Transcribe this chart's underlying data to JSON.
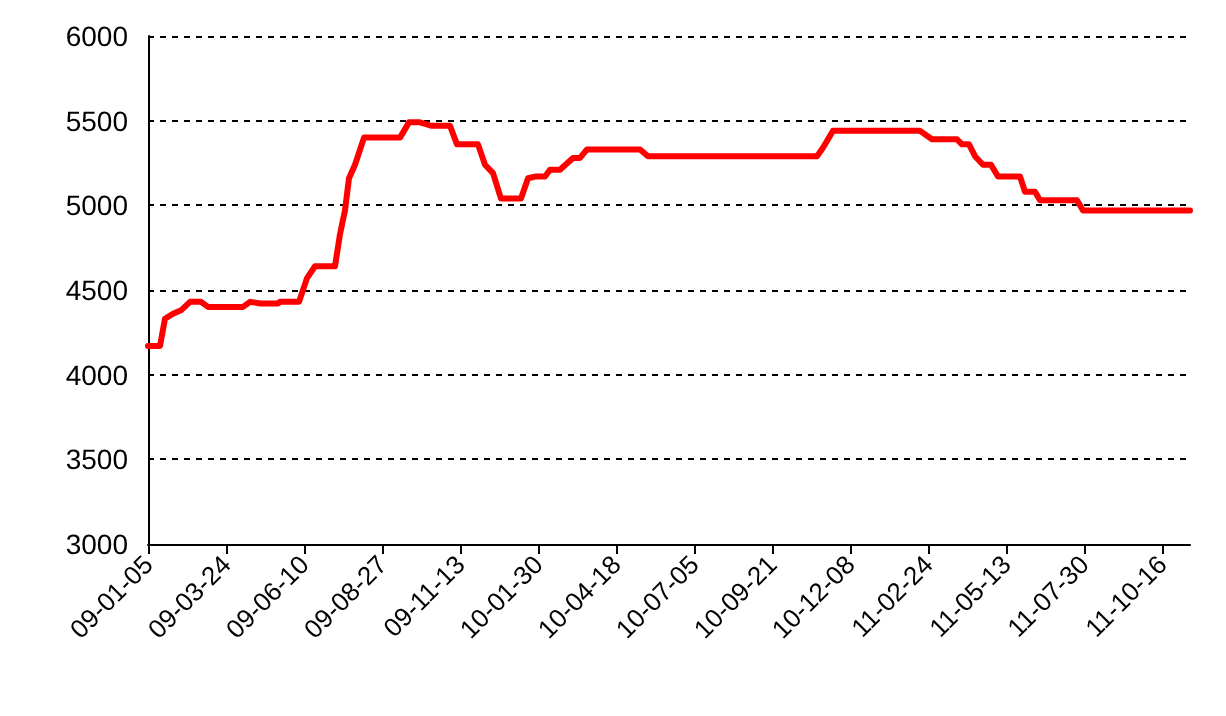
{
  "chart_data": {
    "type": "line",
    "x": [
      "2009-01-05",
      "2009-01-17",
      "2009-01-22",
      "2009-01-30",
      "2009-02-07",
      "2009-02-16",
      "2009-02-27",
      "2009-03-06",
      "2009-04-10",
      "2009-04-17",
      "2009-04-28",
      "2009-05-15",
      "2009-05-17",
      "2009-06-05",
      "2009-06-13",
      "2009-06-21",
      "2009-07-11",
      "2009-07-16",
      "2009-07-21",
      "2009-07-25",
      "2009-07-31",
      "2009-08-09",
      "2009-09-14",
      "2009-09-23",
      "2009-10-04",
      "2009-10-15",
      "2009-11-03",
      "2009-11-10",
      "2009-12-01",
      "2009-12-08",
      "2009-12-16",
      "2009-12-24",
      "2010-01-13",
      "2010-01-20",
      "2010-01-27",
      "2010-02-06",
      "2010-02-11",
      "2010-02-21",
      "2010-03-06",
      "2010-03-13",
      "2010-03-20",
      "2010-05-12",
      "2010-05-20",
      "2010-11-05",
      "2010-11-11",
      "2010-11-21",
      "2011-02-16",
      "2011-02-28",
      "2011-03-25",
      "2011-03-30",
      "2011-04-06",
      "2011-04-12",
      "2011-04-20",
      "2011-04-28",
      "2011-05-05",
      "2011-05-27",
      "2011-06-01",
      "2011-06-11",
      "2011-06-16",
      "2011-07-23",
      "2011-07-29",
      "2011-11-13"
    ],
    "series": [
      {
        "color": "#ff0000",
        "values": [
          4170,
          4170,
          4330,
          4360,
          4380,
          4430,
          4430,
          4400,
          4400,
          4430,
          4420,
          4420,
          4430,
          4430,
          4570,
          4640,
          4640,
          4830,
          4970,
          5160,
          5240,
          5400,
          5400,
          5490,
          5490,
          5470,
          5470,
          5360,
          5360,
          5240,
          5190,
          5040,
          5040,
          5160,
          5170,
          5170,
          5210,
          5210,
          5280,
          5280,
          5330,
          5330,
          5290,
          5290,
          5340,
          5440,
          5440,
          5390,
          5390,
          5360,
          5360,
          5290,
          5240,
          5240,
          5170,
          5170,
          5080,
          5080,
          5030,
          5030,
          4970,
          4970
        ]
      }
    ],
    "xlim": [
      "2009-01-05",
      "2011-11-13"
    ],
    "xticks": [
      {
        "value": "2009-01-05",
        "label": "09-01-05"
      },
      {
        "value": "2009-03-24",
        "label": "09-03-24"
      },
      {
        "value": "2009-06-10",
        "label": "09-06-10"
      },
      {
        "value": "2009-08-27",
        "label": "09-08-27"
      },
      {
        "value": "2009-11-13",
        "label": "09-11-13"
      },
      {
        "value": "2010-01-30",
        "label": "10-01-30"
      },
      {
        "value": "2010-04-18",
        "label": "10-04-18"
      },
      {
        "value": "2010-07-05",
        "label": "10-07-05"
      },
      {
        "value": "2010-09-21",
        "label": "10-09-21"
      },
      {
        "value": "2010-12-08",
        "label": "10-12-08"
      },
      {
        "value": "2011-02-24",
        "label": "11-02-24"
      },
      {
        "value": "2011-05-13",
        "label": "11-05-13"
      },
      {
        "value": "2011-07-30",
        "label": "11-07-30"
      },
      {
        "value": "2011-10-16",
        "label": "11-10-16"
      }
    ],
    "ylim": [
      3000,
      6000
    ],
    "yticks": [
      3000,
      3500,
      4000,
      4500,
      5000,
      5500,
      6000
    ],
    "grid": "y",
    "marker": "none",
    "line_style": "solid"
  }
}
